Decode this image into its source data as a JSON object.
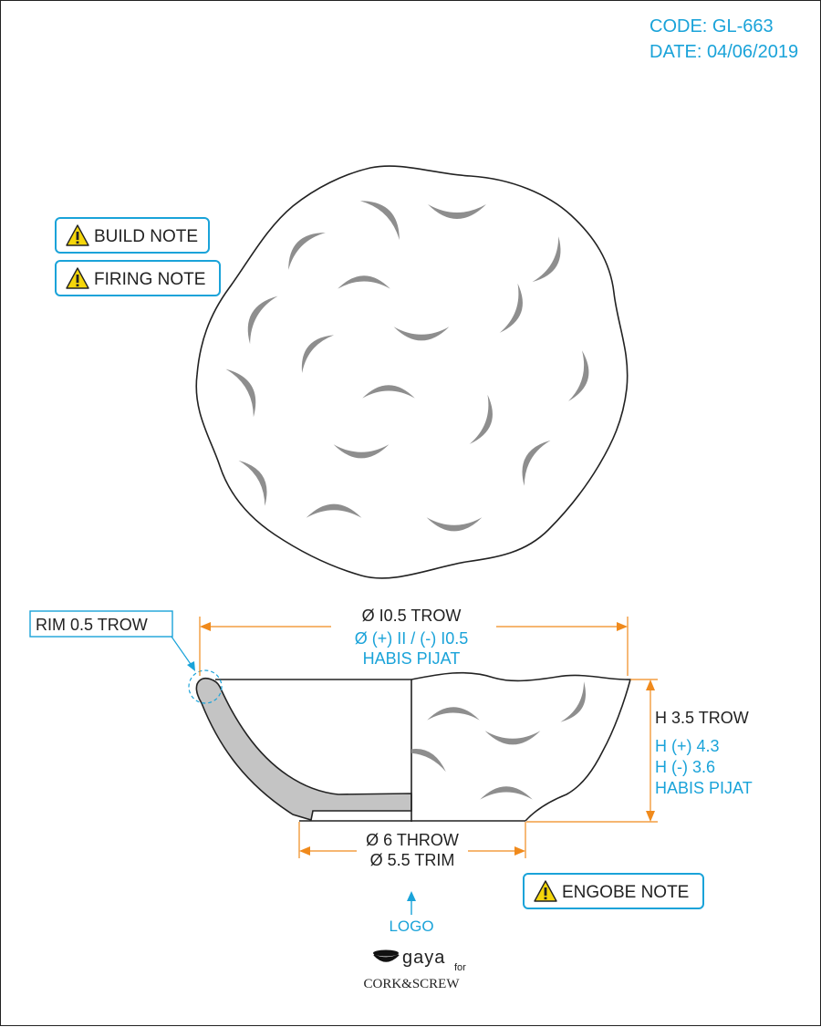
{
  "header": {
    "code": "CODE: GL-663",
    "date": "DATE: 04/06/2019"
  },
  "notes": {
    "build": "BUILD NOTE",
    "firing": "FIRING NOTE",
    "engobe": "ENGOBE NOTE",
    "warning_icon": "warning-triangle-icon"
  },
  "rim": {
    "label": "RIM 0.5 TROW"
  },
  "diameter_top": {
    "nominal": "Ø I0.5 TROW",
    "tolerance": "Ø (+) II / (-) I0.5",
    "finish": "HABIS PIJAT"
  },
  "height": {
    "nominal": "H 3.5 TROW",
    "plus": "H (+) 4.3",
    "minus": "H (-) 3.6",
    "finish": "HABIS PIJAT"
  },
  "diameter_base": {
    "throw": "Ø 6 THROW",
    "trim": "Ø 5.5 TRIM"
  },
  "logo": {
    "marker": "LOGO",
    "brand": "gaya",
    "for": "for",
    "partner": "CORK&SCREW"
  },
  "colors": {
    "accent": "#1aa3d9",
    "dimension": "#f08a1c",
    "line": "#222222",
    "pattern": "#8e8e8e"
  }
}
